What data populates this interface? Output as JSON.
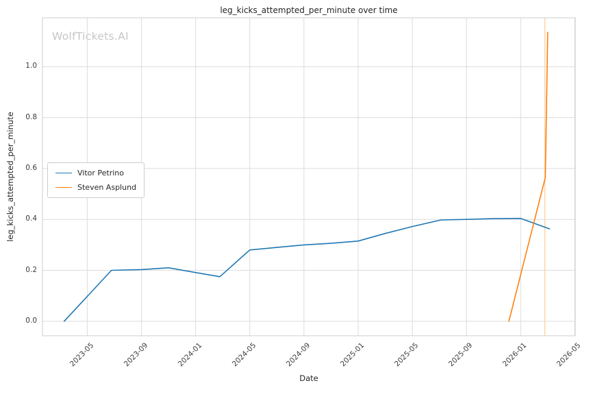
{
  "watermark": "WolfTickets.AI",
  "chart_data": {
    "type": "line",
    "title": "leg_kicks_attempted_per_minute over time",
    "xlabel": "Date",
    "ylabel": "leg_kicks_attempted_per_minute",
    "grid": true,
    "legend_position": "center-left",
    "x_ticks": [
      "2023-05",
      "2023-09",
      "2024-01",
      "2024-05",
      "2024-09",
      "2025-01",
      "2025-05",
      "2025-09",
      "2026-01",
      "2026-05"
    ],
    "y_ticks": [
      0.0,
      0.2,
      0.4,
      0.6,
      0.8,
      1.0
    ],
    "xlim": [
      "2023-01-22",
      "2026-05-02"
    ],
    "ylim": [
      -0.057,
      1.192
    ],
    "series": [
      {
        "name": "Vitor Petrino",
        "color": "#1f77b4",
        "points": [
          [
            "2023-03-10",
            0.0
          ],
          [
            "2023-06-25",
            0.2
          ],
          [
            "2023-09-01",
            0.203
          ],
          [
            "2023-11-01",
            0.21
          ],
          [
            "2024-01-05",
            0.19
          ],
          [
            "2024-02-25",
            0.175
          ],
          [
            "2024-05-01",
            0.28
          ],
          [
            "2024-07-01",
            0.29
          ],
          [
            "2024-09-01",
            0.3
          ],
          [
            "2024-11-01",
            0.306
          ],
          [
            "2025-01-01",
            0.315
          ],
          [
            "2025-03-01",
            0.345
          ],
          [
            "2025-05-01",
            0.372
          ],
          [
            "2025-07-05",
            0.398
          ],
          [
            "2025-09-01",
            0.4
          ],
          [
            "2025-11-01",
            0.403
          ],
          [
            "2026-01-01",
            0.404
          ],
          [
            "2026-03-05",
            0.363
          ]
        ]
      },
      {
        "name": "Steven Asplund",
        "color": "#ff7f0e",
        "points": [
          [
            "2025-12-05",
            0.0
          ],
          [
            "2026-02-26",
            0.565
          ],
          [
            "2026-03-01",
            1.135
          ]
        ]
      }
    ],
    "annotations": [
      {
        "type": "vline",
        "x": "2026-02-25",
        "color": "#fdd4a5",
        "width": 1.5
      }
    ]
  }
}
